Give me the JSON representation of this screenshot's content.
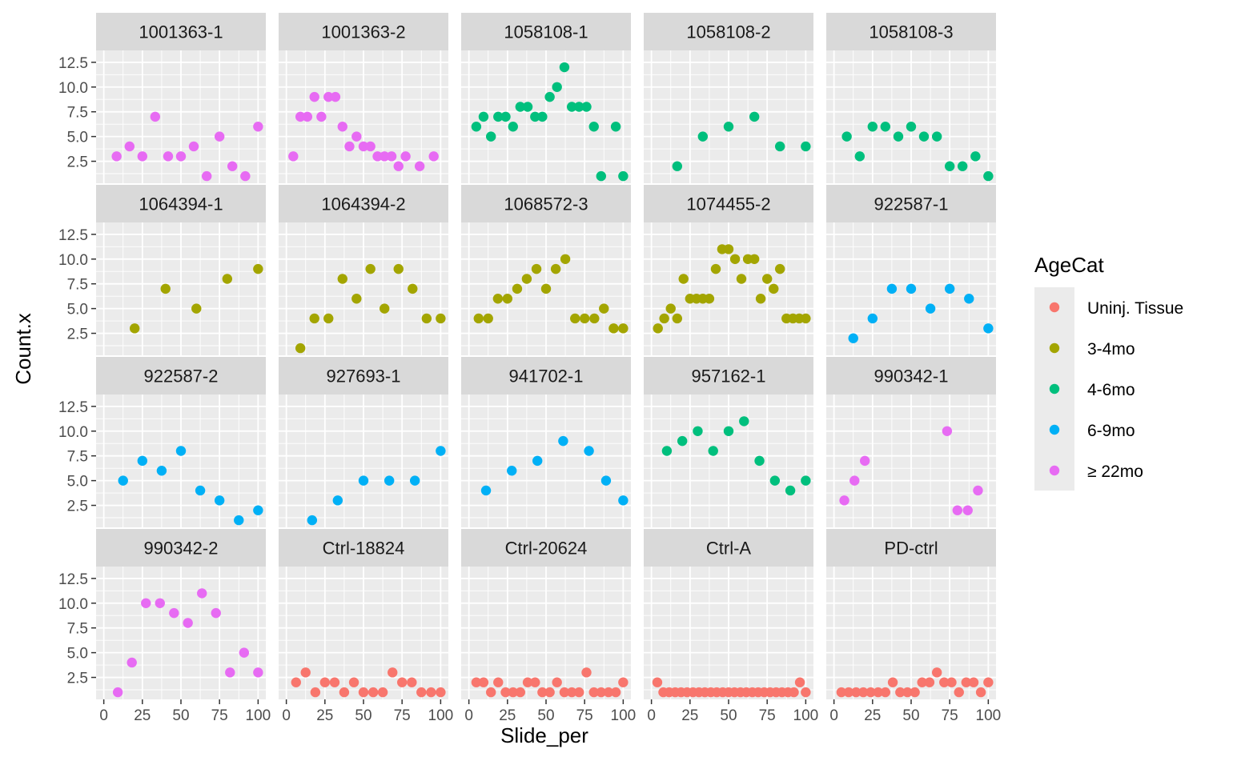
{
  "chart_data": {
    "type": "scatter",
    "facet_by": "ID",
    "xlabel": "Slide_per",
    "ylabel": "Count.x",
    "xlim": [
      0,
      100
    ],
    "ylim": [
      0,
      12.5
    ],
    "x_ticks": [
      0,
      25,
      50,
      75,
      100
    ],
    "x_tick_labels": [
      "0",
      "25",
      "50",
      "75",
      "100"
    ],
    "y_ticks": [
      2.5,
      5.0,
      7.5,
      10.0,
      12.5
    ],
    "y_tick_labels": [
      "2.5",
      "5.0",
      "7.5",
      "10.0",
      "12.5"
    ],
    "grid": true,
    "legend": {
      "title": "AgeCat",
      "placement": "right",
      "categories": [
        {
          "label": "Uninj. Tissue",
          "color": "#F8766D"
        },
        {
          "label": "3-4mo",
          "color": "#A3A500"
        },
        {
          "label": "4-6mo",
          "color": "#00BF7D"
        },
        {
          "label": "6-9mo",
          "color": "#00B0F6"
        },
        {
          "label": "≥ 22mo",
          "color": "#E76BF3"
        }
      ]
    },
    "panels": [
      {
        "label": "1001363-1",
        "category": "≥ 22mo",
        "x": [
          8.3,
          16.7,
          25,
          33.3,
          41.7,
          50,
          58.3,
          66.7,
          75,
          83.3,
          91.7,
          100
        ],
        "y": [
          3,
          4,
          3,
          7,
          3,
          3,
          4,
          1,
          5,
          2,
          1,
          6
        ]
      },
      {
        "label": "1001363-2",
        "category": "≥ 22mo",
        "x": [
          4.5,
          9.1,
          13.6,
          18.2,
          22.7,
          27.3,
          31.8,
          36.4,
          40.9,
          45.5,
          50,
          54.5,
          59.1,
          63.6,
          68.2,
          72.7,
          77.3,
          86.4,
          95.5
        ],
        "y": [
          3,
          7,
          7,
          9,
          7,
          9,
          9,
          6,
          4,
          5,
          4,
          4,
          3,
          3,
          3,
          2,
          3,
          2,
          3
        ]
      },
      {
        "label": "1058108-1",
        "category": "4-6mo",
        "x": [
          4.8,
          9.5,
          14.3,
          19,
          23.8,
          28.6,
          33.3,
          38.1,
          42.9,
          47.6,
          52.4,
          57.1,
          61.9,
          66.7,
          71.4,
          76.2,
          81,
          85.7,
          95.2,
          100
        ],
        "y": [
          6,
          7,
          5,
          7,
          7,
          6,
          8,
          8,
          7,
          7,
          9,
          10,
          12,
          8,
          8,
          8,
          6,
          1,
          6,
          1
        ]
      },
      {
        "label": "1058108-2",
        "category": "4-6mo",
        "x": [
          16.7,
          33.3,
          50,
          66.7,
          83.3,
          100
        ],
        "y": [
          2,
          5,
          6,
          7,
          4,
          4
        ]
      },
      {
        "label": "1058108-3",
        "category": "4-6mo",
        "x": [
          8.3,
          16.7,
          25,
          33.3,
          41.7,
          50,
          58.3,
          66.7,
          75,
          83.3,
          91.7,
          100
        ],
        "y": [
          5,
          3,
          6,
          6,
          5,
          6,
          5,
          5,
          2,
          2,
          3,
          1
        ]
      },
      {
        "label": "1064394-1",
        "category": "3-4mo",
        "x": [
          20,
          40,
          60,
          80,
          100
        ],
        "y": [
          3,
          7,
          5,
          8,
          9
        ]
      },
      {
        "label": "1064394-2",
        "category": "3-4mo",
        "x": [
          9.1,
          18.2,
          27.3,
          36.4,
          45.5,
          54.5,
          63.6,
          72.7,
          81.8,
          90.9,
          100
        ],
        "y": [
          1,
          4,
          4,
          8,
          6,
          9,
          5,
          9,
          7,
          4,
          4
        ]
      },
      {
        "label": "1068572-3",
        "category": "3-4mo",
        "x": [
          6.3,
          12.5,
          18.8,
          25,
          31.3,
          37.5,
          43.8,
          50,
          56.3,
          62.5,
          68.8,
          75,
          81.3,
          87.5,
          93.8,
          100
        ],
        "y": [
          4,
          4,
          6,
          6,
          7,
          8,
          9,
          7,
          9,
          10,
          4,
          4,
          4,
          5,
          3,
          3
        ]
      },
      {
        "label": "1074455-2",
        "category": "3-4mo",
        "x": [
          4.2,
          8.3,
          12.5,
          16.7,
          20.8,
          25,
          29.2,
          33.3,
          37.5,
          41.7,
          45.8,
          50,
          54.2,
          58.3,
          62.5,
          66.7,
          70.8,
          75,
          79.2,
          83.3,
          87.5,
          91.7,
          95.8,
          100
        ],
        "y": [
          3,
          4,
          5,
          4,
          8,
          6,
          6,
          6,
          6,
          9,
          11,
          11,
          10,
          8,
          10,
          10,
          6,
          8,
          7,
          9,
          4,
          4,
          4,
          4
        ]
      },
      {
        "label": "922587-1",
        "category": "6-9mo",
        "x": [
          12.5,
          25,
          37.5,
          50,
          62.5,
          75,
          87.5,
          100
        ],
        "y": [
          2,
          4,
          7,
          7,
          5,
          7,
          6,
          3
        ]
      },
      {
        "label": "922587-2",
        "category": "6-9mo",
        "x": [
          12.5,
          25,
          37.5,
          50,
          62.5,
          75,
          87.5,
          100
        ],
        "y": [
          5,
          7,
          6,
          8,
          4,
          3,
          1,
          2
        ]
      },
      {
        "label": "927693-1",
        "category": "6-9mo",
        "x": [
          16.7,
          33.3,
          50,
          66.7,
          83.3,
          100
        ],
        "y": [
          1,
          3,
          5,
          5,
          5,
          8
        ]
      },
      {
        "label": "941702-1",
        "category": "6-9mo",
        "x": [
          11.1,
          27.8,
          44.4,
          61.1,
          77.8,
          88.9,
          100
        ],
        "y": [
          4,
          6,
          7,
          9,
          8,
          5,
          3
        ]
      },
      {
        "label": "957162-1",
        "category": "4-6mo",
        "x": [
          10,
          20,
          30,
          40,
          50,
          60,
          70,
          80,
          90,
          100
        ],
        "y": [
          8,
          9,
          10,
          8,
          10,
          11,
          7,
          5,
          4,
          5
        ]
      },
      {
        "label": "990342-1",
        "category": "≥ 22mo",
        "x": [
          6.7,
          13.3,
          20,
          73.3,
          80,
          86.7,
          93.3
        ],
        "y": [
          3,
          5,
          7,
          10,
          2,
          2,
          4
        ]
      },
      {
        "label": "990342-2",
        "category": "≥ 22mo",
        "x": [
          9.1,
          18.2,
          27.3,
          36.4,
          45.5,
          54.5,
          63.6,
          72.7,
          81.8,
          90.9,
          100
        ],
        "y": [
          1,
          4,
          10,
          10,
          9,
          8,
          11,
          9,
          3,
          5,
          3
        ]
      },
      {
        "label": "Ctrl-18824",
        "category": "Uninj. Tissue",
        "x": [
          6.3,
          12.5,
          18.8,
          25,
          31.3,
          37.5,
          43.8,
          50,
          56.3,
          62.5,
          68.8,
          75,
          81.3,
          87.5,
          93.8,
          100
        ],
        "y": [
          2,
          3,
          1,
          2,
          2,
          1,
          2,
          1,
          1,
          1,
          3,
          2,
          2,
          1,
          1,
          1
        ]
      },
      {
        "label": "Ctrl-20624",
        "category": "Uninj. Tissue",
        "x": [
          4.8,
          9.5,
          14.3,
          19,
          23.8,
          28.6,
          33.3,
          38.1,
          42.9,
          47.6,
          52.4,
          57.1,
          61.9,
          66.7,
          71.4,
          76.2,
          81,
          85.7,
          90.5,
          95.2,
          100
        ],
        "y": [
          2,
          2,
          1,
          2,
          1,
          1,
          1,
          2,
          2,
          1,
          1,
          2,
          1,
          1,
          1,
          3,
          1,
          1,
          1,
          1,
          2
        ]
      },
      {
        "label": "Ctrl-A",
        "category": "Uninj. Tissue",
        "x": [
          3.8,
          7.7,
          11.5,
          15.4,
          19.2,
          23.1,
          26.9,
          30.8,
          34.6,
          38.5,
          42.3,
          46.2,
          50,
          53.8,
          57.7,
          61.5,
          65.4,
          69.2,
          73.1,
          76.9,
          80.8,
          84.6,
          88.5,
          92.3,
          96.2,
          100
        ],
        "y": [
          2,
          1,
          1,
          1,
          1,
          1,
          1,
          1,
          1,
          1,
          1,
          1,
          1,
          1,
          1,
          1,
          1,
          1,
          1,
          1,
          1,
          1,
          1,
          1,
          2,
          1
        ]
      },
      {
        "label": "PD-ctrl",
        "category": "Uninj. Tissue",
        "x": [
          4.8,
          9.5,
          14.3,
          19,
          23.8,
          28.6,
          33.3,
          38.1,
          42.9,
          47.6,
          52.4,
          57.1,
          61.9,
          66.7,
          71.4,
          76.2,
          81,
          85.7,
          90.5,
          95.2,
          100
        ],
        "y": [
          1,
          1,
          1,
          1,
          1,
          1,
          1,
          2,
          1,
          1,
          1,
          2,
          2,
          3,
          2,
          2,
          1,
          2,
          2,
          1,
          2
        ]
      }
    ]
  }
}
